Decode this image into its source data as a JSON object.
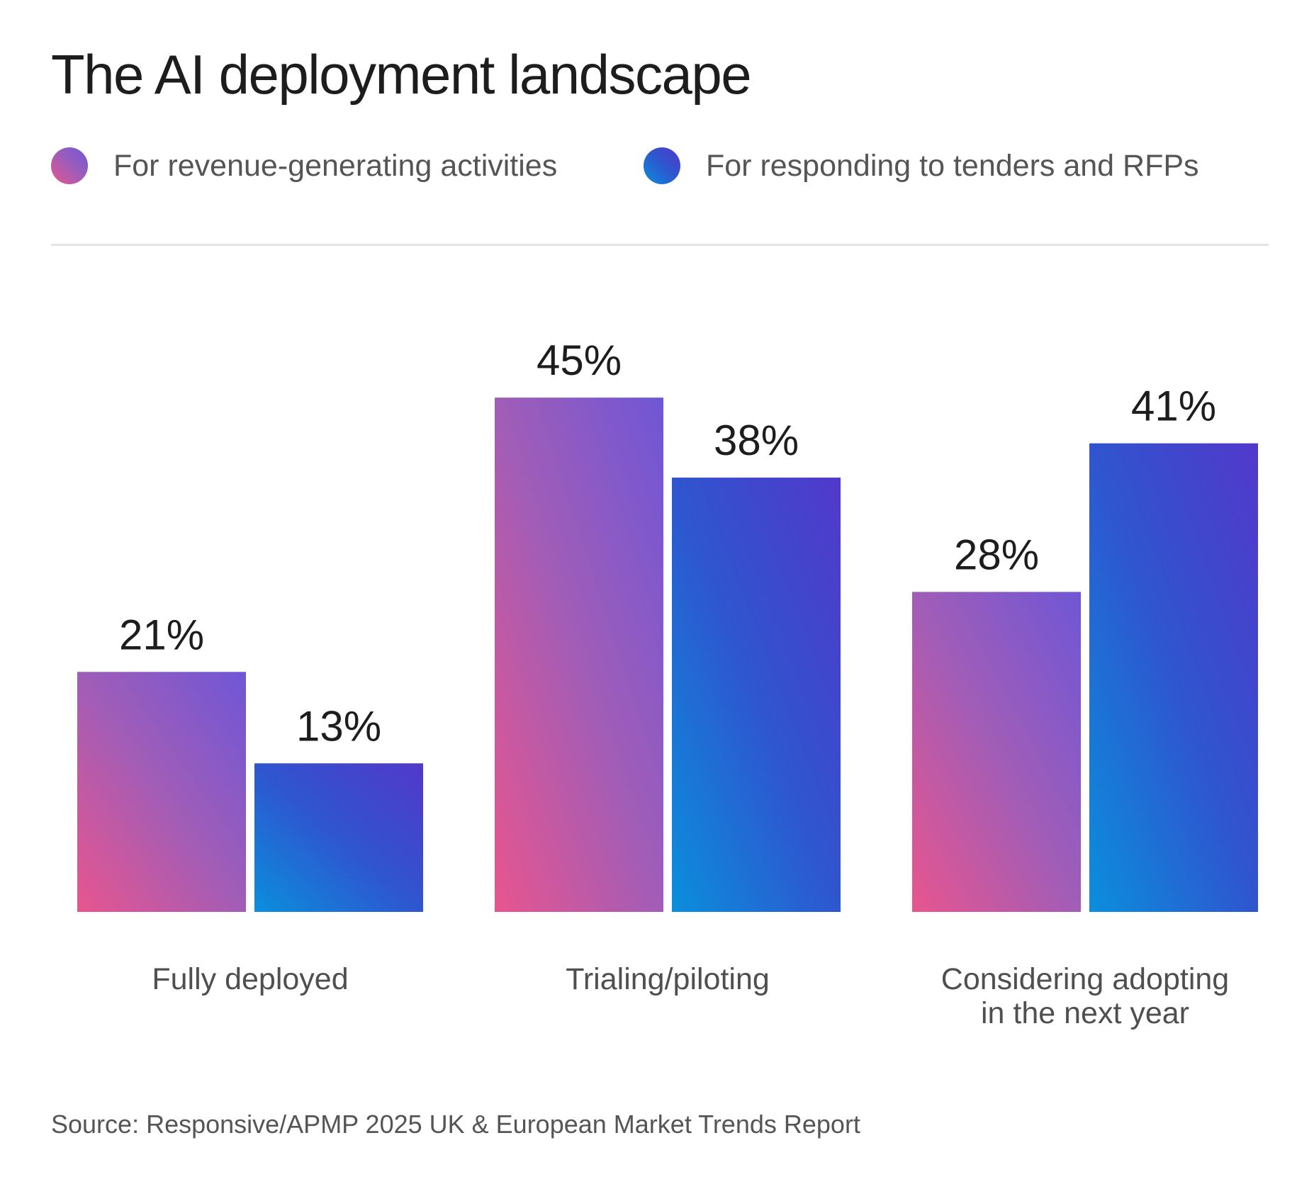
{
  "chart_data": {
    "type": "bar",
    "title": "The AI deployment landscape",
    "categories": [
      [
        "Fully deployed"
      ],
      [
        "Trialing/piloting"
      ],
      [
        "Considering adopting",
        "in the next year"
      ]
    ],
    "series": [
      {
        "name": "For revenue-generating activities",
        "values": [
          21,
          45,
          28
        ],
        "value_labels": [
          "21%",
          "45%",
          "28%"
        ]
      },
      {
        "name": "For responding to tenders and RFPs",
        "values": [
          13,
          38,
          41
        ],
        "value_labels": [
          "13%",
          "38%",
          "41%"
        ]
      }
    ],
    "ylim": [
      0,
      45
    ],
    "unit": "%",
    "xlabel": "",
    "ylabel": "",
    "grid": false,
    "legend": "top-left",
    "source": "Source: Responsive/APMP 2025 UK & European Market Trends Report"
  },
  "colors": {
    "revenue_start": "#e8558e",
    "revenue_mid": "#a15db7",
    "revenue_end": "#6f56d6",
    "rfp_start": "#0a8fdc",
    "rfp_mid": "#2f55cf",
    "rfp_end": "#5238cb"
  }
}
